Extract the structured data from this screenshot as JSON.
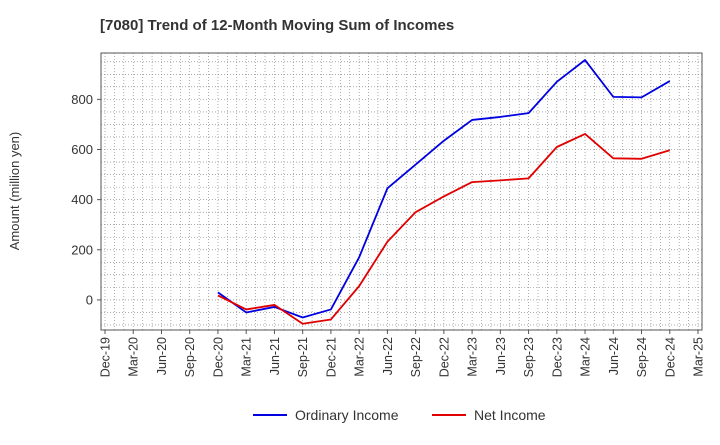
{
  "chart_data": {
    "type": "line",
    "title": "[7080]  Trend of 12-Month Moving Sum of Incomes",
    "ylabel": "Amount (million yen)",
    "xlabel": "",
    "ylim": [
      -120,
      985
    ],
    "yticks": [
      0,
      200,
      400,
      600,
      800
    ],
    "grid": true,
    "legend_position": "bottom-center",
    "categories": [
      "Dec-19",
      "Mar-20",
      "Jun-20",
      "Sep-20",
      "Dec-20",
      "Mar-21",
      "Jun-21",
      "Sep-21",
      "Dec-21",
      "Mar-22",
      "Jun-22",
      "Sep-22",
      "Dec-22",
      "Mar-23",
      "Jun-23",
      "Sep-23",
      "Dec-23",
      "Mar-24",
      "Jun-24",
      "Sep-24",
      "Dec-24",
      "Mar-25"
    ],
    "series": [
      {
        "name": "Ordinary Income",
        "color": "#0000e0",
        "values": [
          null,
          null,
          null,
          null,
          30,
          -50,
          -28,
          -70,
          -38,
          170,
          445,
          540,
          635,
          718,
          730,
          745,
          870,
          957,
          810,
          808,
          873,
          null
        ]
      },
      {
        "name": "Net Income",
        "color": "#e00000",
        "values": [
          null,
          null,
          null,
          null,
          18,
          -38,
          -20,
          -95,
          -78,
          55,
          232,
          350,
          413,
          470,
          477,
          485,
          610,
          662,
          565,
          563,
          597,
          null
        ]
      }
    ]
  }
}
